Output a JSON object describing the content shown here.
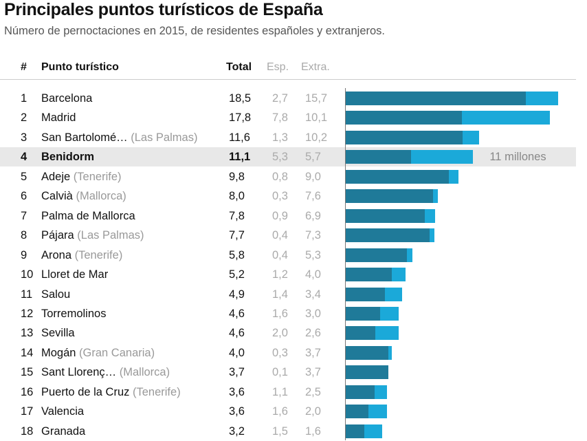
{
  "chart_data": {
    "type": "bar",
    "stacked": true,
    "orientation": "horizontal",
    "title": "Principales puntos turísticos de España",
    "subtitle": "Número de pernoctaciones en 2015, de residentes españoles y extranjeros.",
    "columns": {
      "rank": "#",
      "name": "Punto turístico",
      "total": "Total",
      "esp": "Esp.",
      "extra": "Extra."
    },
    "colors": {
      "extra": "#1f7a99",
      "esp": "#1ba9d9",
      "highlight": "#e8e8e8"
    },
    "highlight_index": 3,
    "annotation": "11 millones",
    "rows": [
      {
        "rank": "1",
        "name": "Barcelona",
        "region": "",
        "total": "18,5",
        "esp": "2,7",
        "extra": "15,7",
        "t": 18.5,
        "e": 15.7
      },
      {
        "rank": "2",
        "name": "Madrid",
        "region": "",
        "total": "17,8",
        "esp": "7,8",
        "extra": "10,1",
        "t": 17.8,
        "e": 10.1
      },
      {
        "rank": "3",
        "name": "San Bartolomé…",
        "region": "(Las Palmas)",
        "total": "11,6",
        "esp": "1,3",
        "extra": "10,2",
        "t": 11.6,
        "e": 10.2
      },
      {
        "rank": "4",
        "name": "Benidorm",
        "region": "",
        "total": "11,1",
        "esp": "5,3",
        "extra": "5,7",
        "t": 11.1,
        "e": 5.7
      },
      {
        "rank": "5",
        "name": "Adeje",
        "region": "(Tenerife)",
        "total": "9,8",
        "esp": "0,8",
        "extra": "9,0",
        "t": 9.8,
        "e": 9.0
      },
      {
        "rank": "6",
        "name": "Calvià",
        "region": "(Mallorca)",
        "total": "8,0",
        "esp": "0,3",
        "extra": "7,6",
        "t": 8.0,
        "e": 7.6
      },
      {
        "rank": "7",
        "name": "Palma de Mallorca",
        "region": "",
        "total": "7,8",
        "esp": "0,9",
        "extra": "6,9",
        "t": 7.8,
        "e": 6.9
      },
      {
        "rank": "8",
        "name": "Pájara",
        "region": "(Las Palmas)",
        "total": "7,7",
        "esp": "0,4",
        "extra": "7,3",
        "t": 7.7,
        "e": 7.3
      },
      {
        "rank": "9",
        "name": "Arona",
        "region": "(Tenerife)",
        "total": "5,8",
        "esp": "0,4",
        "extra": "5,3",
        "t": 5.8,
        "e": 5.3
      },
      {
        "rank": "10",
        "name": "Lloret de Mar",
        "region": "",
        "total": "5,2",
        "esp": "1,2",
        "extra": "4,0",
        "t": 5.2,
        "e": 4.0
      },
      {
        "rank": "11",
        "name": "Salou",
        "region": "",
        "total": "4,9",
        "esp": "1,4",
        "extra": "3,4",
        "t": 4.9,
        "e": 3.4
      },
      {
        "rank": "12",
        "name": "Torremolinos",
        "region": "",
        "total": "4,6",
        "esp": "1,6",
        "extra": "3,0",
        "t": 4.6,
        "e": 3.0
      },
      {
        "rank": "13",
        "name": "Sevilla",
        "region": "",
        "total": "4,6",
        "esp": "2,0",
        "extra": "2,6",
        "t": 4.6,
        "e": 2.6
      },
      {
        "rank": "14",
        "name": "Mogán",
        "region": "(Gran Canaria)",
        "total": "4,0",
        "esp": "0,3",
        "extra": "3,7",
        "t": 4.0,
        "e": 3.7
      },
      {
        "rank": "15",
        "name": "Sant Llorenç…",
        "region": "(Mallorca)",
        "total": "3,7",
        "esp": "0,1",
        "extra": "3,7",
        "t": 3.7,
        "e": 3.7
      },
      {
        "rank": "16",
        "name": "Puerto de la Cruz",
        "region": "(Tenerife)",
        "total": "3,6",
        "esp": "1,1",
        "extra": "2,5",
        "t": 3.6,
        "e": 2.5
      },
      {
        "rank": "17",
        "name": "Valencia",
        "region": "",
        "total": "3,6",
        "esp": "1,6",
        "extra": "2,0",
        "t": 3.6,
        "e": 2.0
      },
      {
        "rank": "18",
        "name": "Granada",
        "region": "",
        "total": "3,2",
        "esp": "1,5",
        "extra": "1,6",
        "t": 3.2,
        "e": 1.6
      }
    ]
  }
}
